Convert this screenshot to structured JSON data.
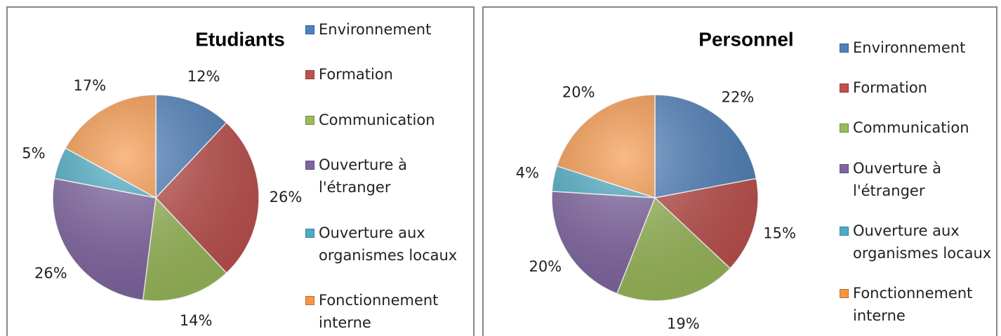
{
  "chart_data": [
    {
      "type": "pie",
      "title": "Etudiants",
      "categories": [
        "Environnement",
        "Formation",
        "Communication",
        "Ouverture à l'étranger",
        "Ouverture aux organismes locaux",
        "Fonctionnement interne"
      ],
      "values": [
        12,
        26,
        14,
        26,
        5,
        17
      ],
      "value_labels": [
        "12%",
        "26%",
        "14%",
        "26%",
        "5%",
        "17%"
      ],
      "colors": [
        "#4f81bd",
        "#c0504d",
        "#9bbb59",
        "#8064a2",
        "#4bacc6",
        "#f79646"
      ],
      "legend": "right"
    },
    {
      "type": "pie",
      "title": "Personnel",
      "categories": [
        "Environnement",
        "Formation",
        "Communication",
        "Ouverture à l'étranger",
        "Ouverture aux organismes locaux",
        "Fonctionnement interne"
      ],
      "values": [
        22,
        15,
        19,
        20,
        4,
        20
      ],
      "value_labels": [
        "22%",
        "15%",
        "19%",
        "20%",
        "4%",
        "20%"
      ],
      "colors": [
        "#4f81bd",
        "#c0504d",
        "#9bbb59",
        "#8064a2",
        "#4bacc6",
        "#f79646"
      ],
      "legend": "right"
    }
  ]
}
